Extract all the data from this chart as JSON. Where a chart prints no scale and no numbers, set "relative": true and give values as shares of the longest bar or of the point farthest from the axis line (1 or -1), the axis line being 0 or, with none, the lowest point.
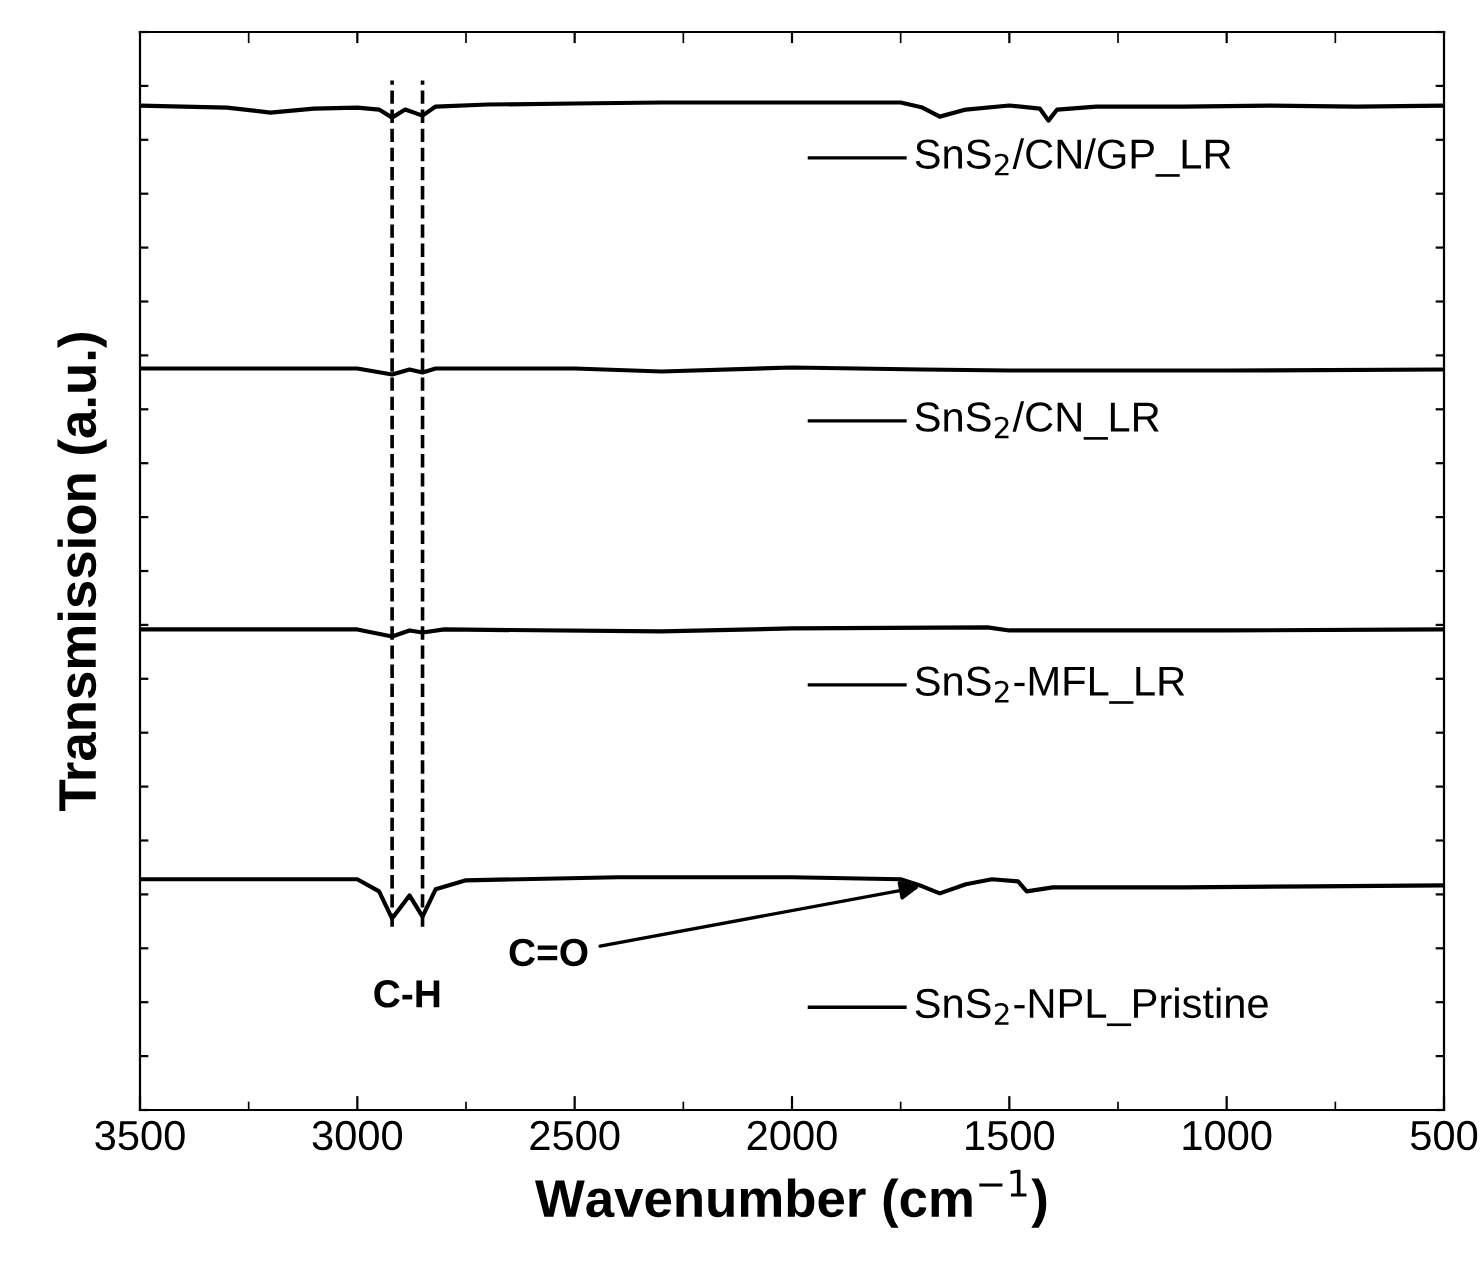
{
  "chart_data": {
    "type": "line",
    "relative": true,
    "xlabel": "Wavenumber (cm$^{−1}$)",
    "ylabel": "Transmission (a.u.)",
    "xlim": [
      3500,
      500
    ],
    "xticks": [
      3500,
      3000,
      2500,
      2000,
      1500,
      1000,
      500
    ],
    "grid": false,
    "legend": "right",
    "line_style": "solid",
    "marker": "none",
    "series": [
      {
        "name": "SnS$_{2}$/CN/GP_LR",
        "color": "#000000",
        "x": [
          3500,
          3300,
          3200,
          3100,
          3000,
          2950,
          2920,
          2890,
          2850,
          2820,
          2700,
          2500,
          2300,
          2100,
          1900,
          1750,
          1700,
          1660,
          1600,
          1500,
          1430,
          1410,
          1390,
          1300,
          1100,
          900,
          700,
          500
        ],
        "values": [
          0.997,
          0.995,
          0.99,
          0.994,
          0.995,
          0.993,
          0.985,
          0.993,
          0.987,
          0.996,
          0.998,
          0.999,
          1.0,
          1.0,
          1.0,
          1.0,
          0.995,
          0.986,
          0.993,
          0.997,
          0.994,
          0.982,
          0.993,
          0.996,
          0.996,
          0.997,
          0.996,
          0.997
        ]
      },
      {
        "name": "SnS$_{2}$/CN_LR",
        "color": "#000000",
        "x": [
          3500,
          3000,
          2920,
          2880,
          2850,
          2820,
          2500,
          2300,
          2000,
          1700,
          1500,
          1000,
          500
        ],
        "values": [
          0.736,
          0.736,
          0.73,
          0.735,
          0.732,
          0.736,
          0.736,
          0.733,
          0.737,
          0.735,
          0.734,
          0.734,
          0.735
        ]
      },
      {
        "name": "SnS$_{2}$-MFL_LR",
        "color": "#000000",
        "x": [
          3500,
          3000,
          2920,
          2880,
          2850,
          2800,
          2300,
          2000,
          1550,
          1500,
          1000,
          500
        ],
        "values": [
          0.477,
          0.477,
          0.47,
          0.476,
          0.474,
          0.477,
          0.475,
          0.478,
          0.479,
          0.476,
          0.476,
          0.477
        ]
      },
      {
        "name": "SnS$_{2}$-NPL_Pristine",
        "color": "#000000",
        "x": [
          3500,
          3000,
          2950,
          2920,
          2880,
          2850,
          2820,
          2750,
          2400,
          2000,
          1750,
          1700,
          1660,
          1600,
          1540,
          1480,
          1460,
          1400,
          1100,
          800,
          500
        ],
        "values": [
          0.229,
          0.229,
          0.217,
          0.19,
          0.213,
          0.192,
          0.219,
          0.228,
          0.231,
          0.231,
          0.229,
          0.222,
          0.215,
          0.224,
          0.229,
          0.227,
          0.217,
          0.221,
          0.221,
          0.222,
          0.223
        ]
      }
    ],
    "ref_lines": [
      {
        "axis": "x",
        "value": 2920,
        "label": null,
        "color": "#000000",
        "line_style": "dashed"
      },
      {
        "axis": "x",
        "value": 2850,
        "label": null,
        "color": "#000000",
        "line_style": "dashed"
      }
    ],
    "annotations": [
      "C-H",
      {
        "text": "C=O",
        "x": 1700,
        "y": 0.222
      }
    ]
  }
}
